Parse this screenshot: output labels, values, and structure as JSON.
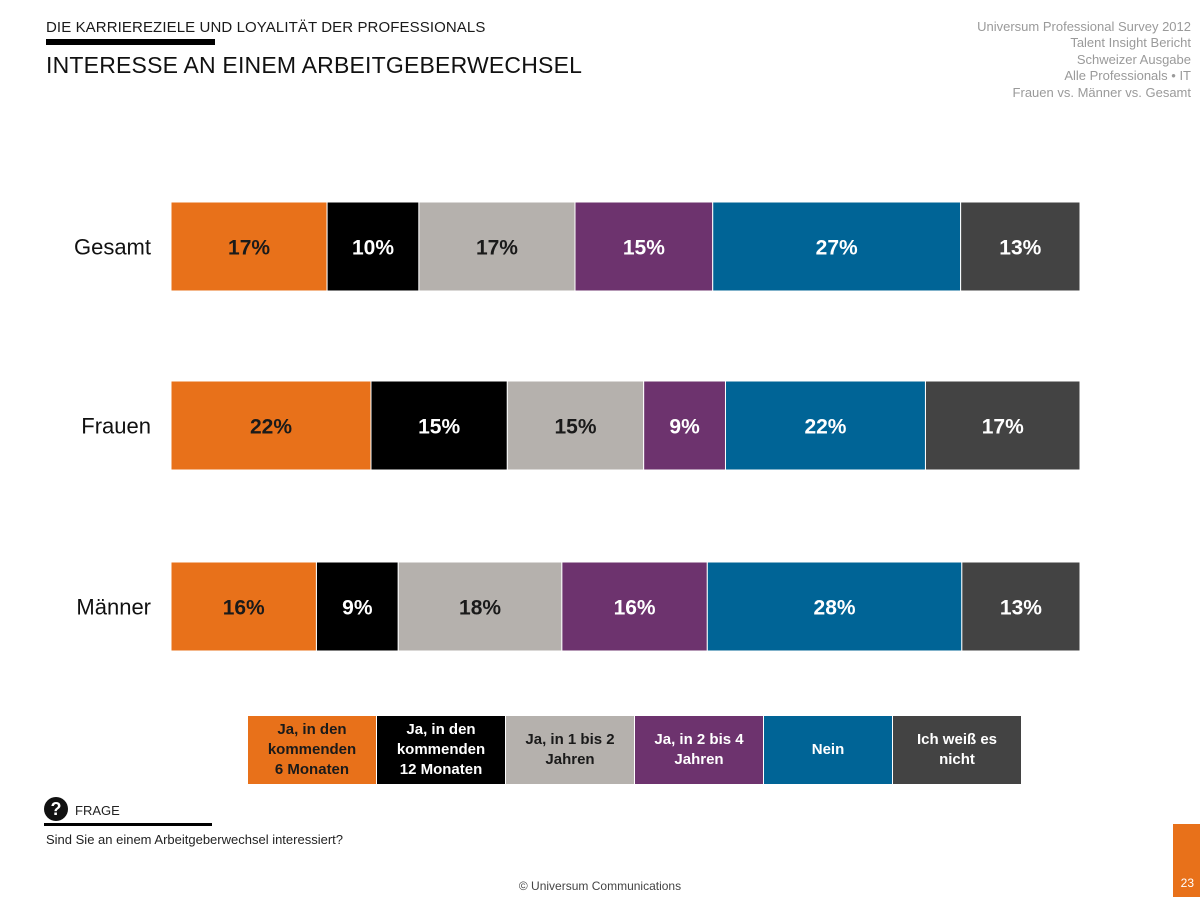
{
  "header": {
    "eyebrow": "DIE KARRIEREZIELE UND LOYALITÄT DER PROFESSIONALS",
    "title": "INTERESSE AN EINEM ARBEITGEBERWECHSEL",
    "meta_lines": [
      "Universum Professional Survey 2012",
      "Talent Insight Bericht",
      "Schweizer Ausgabe",
      "Alle Professionals • IT",
      "Frauen vs. Männer vs. Gesamt"
    ]
  },
  "chart_data": {
    "type": "bar",
    "orientation": "horizontal",
    "stacked": "100%",
    "categories": [
      "Gesamt",
      "Frauen",
      "Männer"
    ],
    "series": [
      {
        "name": "Ja, in den kommenden 6 Monaten",
        "color": "#e8711a",
        "text_color": "#1a1a1a",
        "values": [
          17,
          22,
          16
        ]
      },
      {
        "name": "Ja, in den kommenden 12 Monaten",
        "color": "#000000",
        "text_color": "#ffffff",
        "values": [
          10,
          15,
          9
        ]
      },
      {
        "name": "Ja, in 1 bis 2 Jahren",
        "color": "#b5b1ad",
        "text_color": "#1a1a1a",
        "values": [
          17,
          15,
          18
        ]
      },
      {
        "name": "Ja, in 2 bis 4 Jahren",
        "color": "#6d336e",
        "text_color": "#ffffff",
        "values": [
          15,
          9,
          16
        ]
      },
      {
        "name": "Nein",
        "color": "#006496",
        "text_color": "#ffffff",
        "values": [
          27,
          22,
          28
        ]
      },
      {
        "name": "Ich weiß es nicht",
        "color": "#434343",
        "text_color": "#ffffff",
        "values": [
          13,
          17,
          13
        ]
      }
    ],
    "value_suffix": "%",
    "legend_position": "bottom"
  },
  "legend": [
    {
      "lines": [
        "Ja, in den",
        "kommenden",
        "6 Monaten"
      ]
    },
    {
      "lines": [
        "Ja, in den",
        "kommenden",
        "12 Monaten"
      ]
    },
    {
      "lines": [
        "Ja, in 1 bis 2",
        "Jahren"
      ]
    },
    {
      "lines": [
        "Ja, in 2 bis 4",
        "Jahren"
      ]
    },
    {
      "lines": [
        "Nein"
      ]
    },
    {
      "lines": [
        "Ich weiß es",
        "nicht"
      ]
    }
  ],
  "question": {
    "icon": "question-icon",
    "label": "FRAGE",
    "text": "Sind Sie an einem Arbeitgeberwechsel interessiert?"
  },
  "footer": {
    "copyright": "© Universum Communications",
    "page_number": "23"
  },
  "colors": {
    "accent": "#e8711a"
  }
}
